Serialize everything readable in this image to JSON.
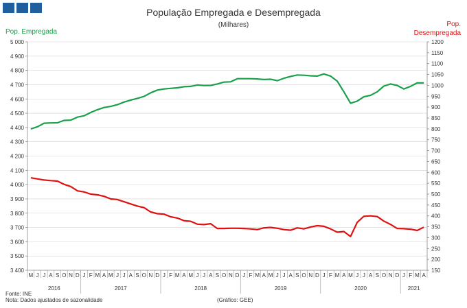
{
  "brand": {
    "logo_color": "#1f5f9e"
  },
  "header": {
    "title": "População Empregada e Desempregada",
    "subtitle": "(Milhares)"
  },
  "axes": {
    "left_label": "Pop. Empregada",
    "right_label_line1": "Pop.",
    "right_label_line2": "Desempregada"
  },
  "footer": {
    "source": "Fonte: INE",
    "note": "Nota: Dados ajustados de sazonalidade",
    "credit": "(Gráfico: GEE)"
  },
  "colors": {
    "employed": "#1aa04a",
    "unemployed": "#e01010",
    "grid": "#d0d0d0"
  },
  "chart_data": {
    "type": "line",
    "x_month_labels": [
      "M",
      "J",
      "J",
      "A",
      "S",
      "O",
      "N",
      "D",
      "J",
      "F",
      "M",
      "A",
      "M",
      "J",
      "J",
      "A",
      "S",
      "O",
      "N",
      "D",
      "J",
      "F",
      "M",
      "A",
      "M",
      "J",
      "J",
      "A",
      "S",
      "O",
      "N",
      "D",
      "J",
      "F",
      "M",
      "A",
      "M",
      "J",
      "J",
      "A",
      "S",
      "O",
      "N",
      "D",
      "J",
      "F",
      "M",
      "A",
      "M",
      "J",
      "J",
      "A",
      "S",
      "O",
      "N",
      "D",
      "J",
      "F",
      "M",
      "A"
    ],
    "years": [
      {
        "label": "2016",
        "start": 0,
        "end": 7
      },
      {
        "label": "2017",
        "start": 8,
        "end": 19
      },
      {
        "label": "2018",
        "start": 20,
        "end": 31
      },
      {
        "label": "2019",
        "start": 32,
        "end": 43
      },
      {
        "label": "2020",
        "start": 44,
        "end": 55
      },
      {
        "label": "2021",
        "start": 56,
        "end": 59
      }
    ],
    "y_left": {
      "min": 3400,
      "max": 5000,
      "step": 100,
      "tick_labels": [
        "3 400",
        "3 500",
        "3 600",
        "3 700",
        "3 800",
        "3 900",
        "4 000",
        "4 100",
        "4 200",
        "4 300",
        "4 400",
        "4 500",
        "4 600",
        "4 700",
        "4 800",
        "4 900",
        "5 000"
      ]
    },
    "y_right": {
      "min": 150,
      "max": 1200,
      "step": 50,
      "tick_labels": [
        "150",
        "200",
        "250",
        "300",
        "350",
        "400",
        "450",
        "500",
        "550",
        "600",
        "650",
        "700",
        "750",
        "800",
        "850",
        "900",
        "950",
        "1000",
        "1050",
        "1100",
        "1150",
        "1200"
      ]
    },
    "grid": true,
    "series": [
      {
        "name": "Pop. Empregada",
        "axis": "left",
        "values": [
          4390,
          4405,
          4430,
          4432,
          4433,
          4450,
          4452,
          4473,
          4482,
          4505,
          4525,
          4540,
          4548,
          4560,
          4578,
          4592,
          4604,
          4618,
          4643,
          4662,
          4670,
          4674,
          4678,
          4686,
          4688,
          4698,
          4694,
          4695,
          4705,
          4718,
          4720,
          4742,
          4742,
          4742,
          4740,
          4736,
          4738,
          4728,
          4745,
          4758,
          4768,
          4766,
          4762,
          4760,
          4775,
          4760,
          4725,
          4650,
          4570,
          4585,
          4615,
          4625,
          4650,
          4690,
          4705,
          4695,
          4670,
          4688,
          4712,
          4712
        ]
      },
      {
        "name": "Pop. Desempregada",
        "axis": "right",
        "values": [
          575,
          570,
          565,
          562,
          560,
          545,
          535,
          515,
          510,
          500,
          497,
          490,
          478,
          475,
          465,
          455,
          445,
          438,
          418,
          410,
          408,
          396,
          390,
          378,
          375,
          362,
          360,
          364,
          342,
          342,
          343,
          343,
          342,
          340,
          337,
          345,
          347,
          343,
          337,
          334,
          345,
          340,
          349,
          355,
          352,
          340,
          325,
          328,
          305,
          370,
          398,
          400,
          397,
          376,
          361,
          342,
          341,
          339,
          333,
          348
        ]
      }
    ]
  }
}
